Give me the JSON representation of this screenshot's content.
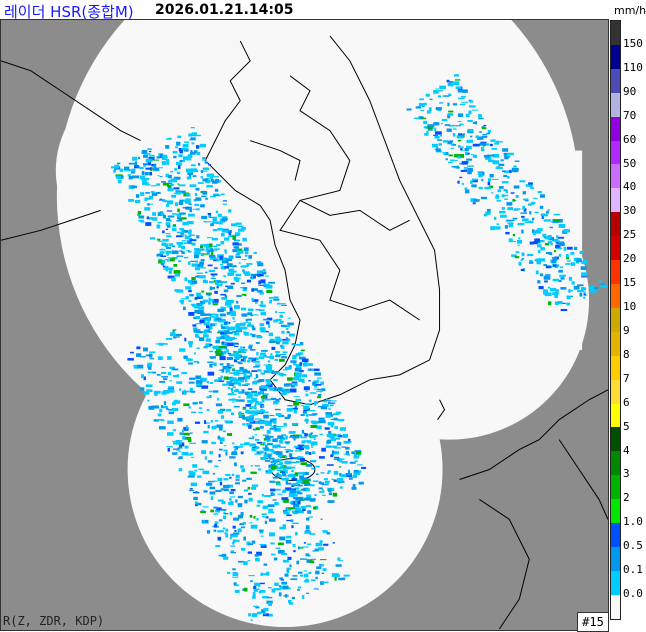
{
  "header": {
    "title": "레이더 HSR(종합M)",
    "timestamp": "2026.01.21.14:05",
    "unit": "mm/h"
  },
  "legend": {
    "labels": [
      "150",
      "110",
      "90",
      "70",
      "60",
      "50",
      "40",
      "30",
      "25",
      "20",
      "15",
      "10",
      "9",
      "8",
      "7",
      "6",
      "5",
      "4",
      "3",
      "2",
      "1.0",
      "0.5",
      "0.1",
      "0.0"
    ],
    "colors": [
      "#333333",
      "#000090",
      "#4c4cb4",
      "#b3b3e0",
      "#9000e0",
      "#b029ff",
      "#c86eff",
      "#e0b4ff",
      "#b40000",
      "#d20000",
      "#ff3300",
      "#ff6600",
      "#ccaa00",
      "#e0b400",
      "#ffcc00",
      "#ffdc33",
      "#ffff00",
      "#005000",
      "#008800",
      "#00b300",
      "#00e600",
      "#0050ff",
      "#0099ee",
      "#00ccff",
      "#f8f8f8"
    ]
  },
  "map": {
    "background": "#8c8c8c",
    "coverage": "#f8f8f8",
    "outline": "#000000"
  },
  "footer": {
    "variables": "R(Z, ZDR, KDP)",
    "frame": "#15"
  }
}
